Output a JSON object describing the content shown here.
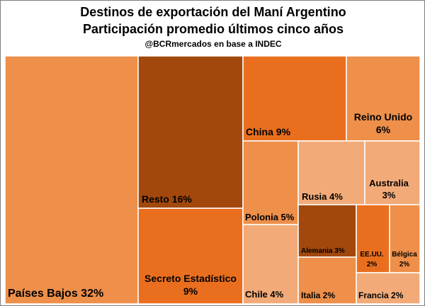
{
  "title": "Destinos de exportación del Maní Argentino",
  "subtitle": "Participación promedio últimos cinco años",
  "source": "@BCRmercados en base a INDEC",
  "chart_data": {
    "type": "treemap",
    "unit": "%",
    "items": [
      {
        "name": "Países Bajos",
        "value_label": "32%",
        "value": 32,
        "color": "#ee8f4a",
        "label_lines": [
          "Países Bajos 32%"
        ]
      },
      {
        "name": "Resto",
        "value_label": "16%",
        "value": 16,
        "color": "#a2480c",
        "label_lines": [
          "Resto 16%"
        ]
      },
      {
        "name": "Secreto Estadístico",
        "value_label": "9%",
        "value": 9,
        "color": "#e96f1f",
        "label_lines": [
          "Secreto Estadístico",
          "9%"
        ]
      },
      {
        "name": "China",
        "value_label": "9%",
        "value": 9,
        "color": "#e96f1f",
        "label_lines": [
          "China 9%"
        ]
      },
      {
        "name": "Reino Unido",
        "value_label": "6%",
        "value": 6,
        "color": "#ee8f4a",
        "label_lines": [
          "Reino Unido",
          "6%"
        ]
      },
      {
        "name": "Polonia",
        "value_label": "5%",
        "value": 5,
        "color": "#ee8f4a",
        "label_lines": [
          "Polonia 5%"
        ]
      },
      {
        "name": "Chile",
        "value_label": "4%",
        "value": 4,
        "color": "#f2ab78",
        "label_lines": [
          "Chile 4%"
        ]
      },
      {
        "name": "Rusia",
        "value_label": "4%",
        "value": 4,
        "color": "#f2ab78",
        "label_lines": [
          "Rusia 4%"
        ]
      },
      {
        "name": "Australia",
        "value_label": "3%",
        "value": 3,
        "color": "#f2ab78",
        "label_lines": [
          "Australia",
          "3%"
        ]
      },
      {
        "name": "Alemania",
        "value_label": "3%",
        "value": 3,
        "color": "#a2480c",
        "label_lines": [
          "Alemania 3%"
        ]
      },
      {
        "name": "EE.UU.",
        "value_label": "2%",
        "value": 2,
        "color": "#e96f1f",
        "label_lines": [
          "EE.UU.",
          "2%"
        ]
      },
      {
        "name": "Bélgica",
        "value_label": "2%",
        "value": 2,
        "color": "#ee8f4a",
        "label_lines": [
          "Bélgica",
          "2%"
        ]
      },
      {
        "name": "Italia",
        "value_label": "2%",
        "value": 2,
        "color": "#ee8f4a",
        "label_lines": [
          "Italia 2%"
        ]
      },
      {
        "name": "Francia",
        "value_label": "2%",
        "value": 2,
        "color": "#f2ab78",
        "label_lines": [
          "Francia 2%"
        ]
      }
    ]
  }
}
